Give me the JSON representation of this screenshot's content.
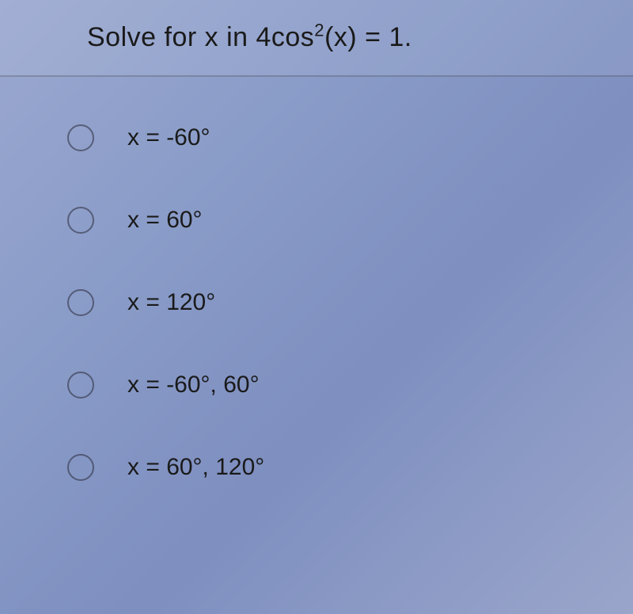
{
  "question": {
    "plain": "Solve for x in 4cos²(x) = 1.",
    "html": "Solve for x in 4cos<sup>2</sup>(x) = 1."
  },
  "options": [
    {
      "label": "x = -60°"
    },
    {
      "label": "x = 60°"
    },
    {
      "label": "x = 120°"
    },
    {
      "label": "x = -60°, 60°"
    },
    {
      "label": "x = 60°, 120°"
    }
  ],
  "styling": {
    "background_gradient": [
      "#9ba8d0",
      "#8a9cc8",
      "#7e8fc0",
      "#9aa5ca"
    ],
    "question_fontsize": 34,
    "option_fontsize": 30,
    "text_color": "#1a1a1a",
    "radio_border": "rgba(40,40,55,0.55)",
    "radio_size": 34,
    "option_spacing": 70
  }
}
